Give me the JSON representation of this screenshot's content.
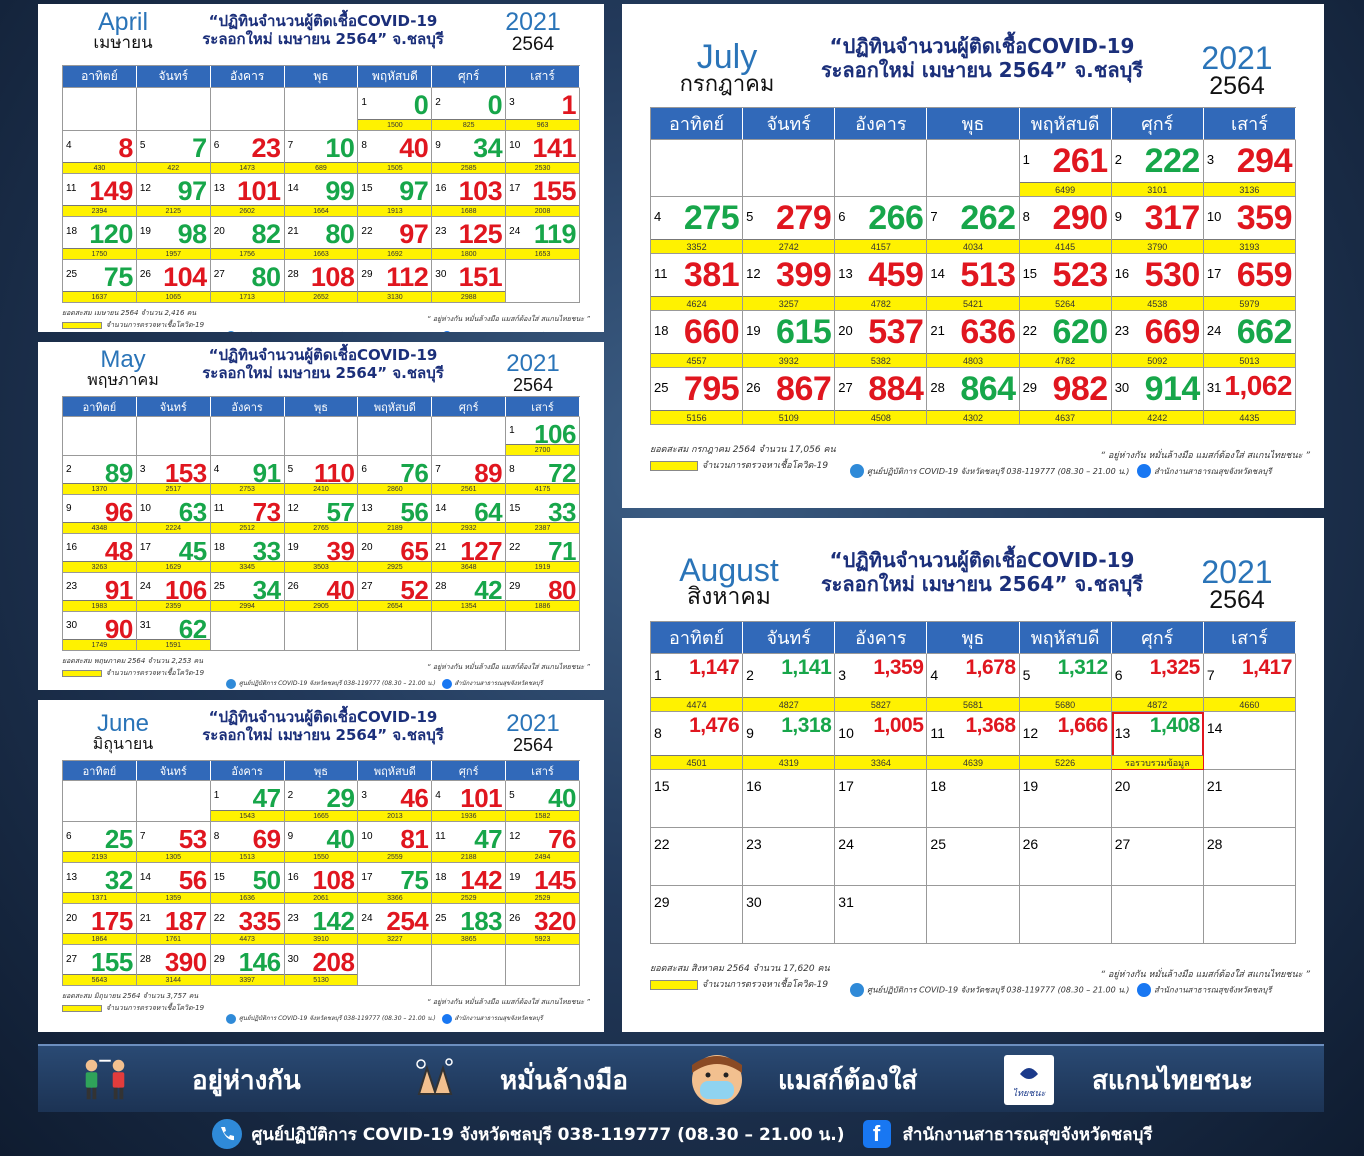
{
  "title_line1": "“ปฏิทินจำนวนผู้ติดเชื้อCOVID-19",
  "title_line2": "ระลอกใหม่ เมษายน 2564” จ.ชลบุรี",
  "year_en": "2021",
  "year_th": "2564",
  "weekdays": [
    "อาทิตย์",
    "จันทร์",
    "อังคาร",
    "พุธ",
    "พฤหัสบดี",
    "ศุกร์",
    "เสาร์"
  ],
  "footer": {
    "slogan": "“ อยู่ห่างกัน หมั่นล้างมือ แมสก์ต้องใส่ สแกนไทยชนะ ”",
    "legend": "จำนวนการตรวจหาเชื้อโควิด-19",
    "center": "ศูนย์ปฏิบัติการ COVID-19 จังหวัดชลบุรี 038-119777 (08.30 – 21.00 น.)",
    "office": "สำนักงานสาธารณสุขจังหวัดชลบุรี"
  },
  "months": {
    "april": {
      "en": "April",
      "th": "เมษายน",
      "total": "ยอดสะสม เมษายน 2564 จำนวน 2,416 คน",
      "offset": 4,
      "days": [
        [
          "0",
          "1500",
          "g"
        ],
        [
          "0",
          "825",
          "g"
        ],
        [
          "1",
          "963",
          "r"
        ],
        [
          "8",
          "430",
          "r"
        ],
        [
          "7",
          "422",
          "g"
        ],
        [
          "23",
          "1473",
          "r"
        ],
        [
          "10",
          "689",
          "g"
        ],
        [
          "40",
          "1505",
          "r"
        ],
        [
          "34",
          "2585",
          "g"
        ],
        [
          "141",
          "2530",
          "r"
        ],
        [
          "149",
          "2394",
          "r"
        ],
        [
          "97",
          "2125",
          "g"
        ],
        [
          "101",
          "2602",
          "r"
        ],
        [
          "99",
          "1664",
          "g"
        ],
        [
          "97",
          "1913",
          "g"
        ],
        [
          "103",
          "1688",
          "r"
        ],
        [
          "155",
          "2008",
          "r"
        ],
        [
          "120",
          "1750",
          "g"
        ],
        [
          "98",
          "1957",
          "g"
        ],
        [
          "82",
          "1756",
          "g"
        ],
        [
          "80",
          "1663",
          "g"
        ],
        [
          "97",
          "1692",
          "r"
        ],
        [
          "125",
          "1800",
          "r"
        ],
        [
          "119",
          "1653",
          "g"
        ],
        [
          "75",
          "1637",
          "g"
        ],
        [
          "104",
          "1065",
          "r"
        ],
        [
          "80",
          "1713",
          "g"
        ],
        [
          "108",
          "2652",
          "r"
        ],
        [
          "112",
          "3130",
          "r"
        ],
        [
          "151",
          "2988",
          "r"
        ]
      ]
    },
    "may": {
      "en": "May",
      "th": "พฤษภาคม",
      "total": "ยอดสะสม พฤษภาคม 2564 จำนวน 2,253 คน",
      "offset": 6,
      "days": [
        [
          "106",
          "2700",
          "g"
        ],
        [
          "89",
          "1370",
          "g"
        ],
        [
          "153",
          "2517",
          "r"
        ],
        [
          "91",
          "2753",
          "g"
        ],
        [
          "110",
          "2410",
          "r"
        ],
        [
          "76",
          "2860",
          "g"
        ],
        [
          "89",
          "2561",
          "r"
        ],
        [
          "72",
          "4175",
          "g"
        ],
        [
          "96",
          "4348",
          "r"
        ],
        [
          "63",
          "2224",
          "g"
        ],
        [
          "73",
          "2512",
          "r"
        ],
        [
          "57",
          "2765",
          "g"
        ],
        [
          "56",
          "2189",
          "g"
        ],
        [
          "64",
          "2932",
          "g"
        ],
        [
          "33",
          "2387",
          "g"
        ],
        [
          "48",
          "3263",
          "r"
        ],
        [
          "45",
          "1629",
          "g"
        ],
        [
          "33",
          "3345",
          "g"
        ],
        [
          "39",
          "3503",
          "r"
        ],
        [
          "65",
          "2925",
          "r"
        ],
        [
          "127",
          "3648",
          "r"
        ],
        [
          "71",
          "1919",
          "g"
        ],
        [
          "91",
          "1983",
          "r"
        ],
        [
          "106",
          "2359",
          "r"
        ],
        [
          "34",
          "2994",
          "g"
        ],
        [
          "40",
          "2905",
          "r"
        ],
        [
          "52",
          "2654",
          "r"
        ],
        [
          "42",
          "1354",
          "g"
        ],
        [
          "80",
          "1886",
          "r"
        ],
        [
          "90",
          "1749",
          "r"
        ],
        [
          "62",
          "1591",
          "g"
        ]
      ]
    },
    "june": {
      "en": "June",
      "th": "มิถุนายน",
      "total": "ยอดสะสม มิถุนายน 2564 จำนวน 3,757 คน",
      "offset": 2,
      "days": [
        [
          "47",
          "1543",
          "g"
        ],
        [
          "29",
          "1665",
          "g"
        ],
        [
          "46",
          "2013",
          "r"
        ],
        [
          "101",
          "1936",
          "r"
        ],
        [
          "40",
          "1582",
          "g"
        ],
        [
          "25",
          "2193",
          "g"
        ],
        [
          "53",
          "1305",
          "r"
        ],
        [
          "69",
          "1513",
          "r"
        ],
        [
          "40",
          "1550",
          "g"
        ],
        [
          "81",
          "2559",
          "r"
        ],
        [
          "47",
          "2188",
          "g"
        ],
        [
          "76",
          "2494",
          "r"
        ],
        [
          "32",
          "1371",
          "g"
        ],
        [
          "56",
          "1359",
          "r"
        ],
        [
          "50",
          "1636",
          "g"
        ],
        [
          "108",
          "2061",
          "r"
        ],
        [
          "75",
          "3366",
          "g"
        ],
        [
          "142",
          "2529",
          "r"
        ],
        [
          "145",
          "2529",
          "r"
        ],
        [
          "175",
          "1864",
          "r"
        ],
        [
          "187",
          "1761",
          "r"
        ],
        [
          "335",
          "4473",
          "r"
        ],
        [
          "142",
          "3910",
          "g"
        ],
        [
          "254",
          "3227",
          "r"
        ],
        [
          "183",
          "3865",
          "g"
        ],
        [
          "320",
          "5923",
          "r"
        ],
        [
          "155",
          "5643",
          "g"
        ],
        [
          "390",
          "3144",
          "r"
        ],
        [
          "146",
          "3397",
          "g"
        ],
        [
          "208",
          "5130",
          "r"
        ]
      ]
    },
    "july": {
      "en": "July",
      "th": "กรกฎาคม",
      "total": "ยอดสะสม กรกฎาคม 2564 จำนวน 17,056 คน",
      "offset": 4,
      "days": [
        [
          "261",
          "6499",
          "r"
        ],
        [
          "222",
          "3101",
          "g"
        ],
        [
          "294",
          "3136",
          "r"
        ],
        [
          "275",
          "3352",
          "g"
        ],
        [
          "279",
          "2742",
          "r"
        ],
        [
          "266",
          "4157",
          "g"
        ],
        [
          "262",
          "4034",
          "g"
        ],
        [
          "290",
          "4145",
          "r"
        ],
        [
          "317",
          "3790",
          "r"
        ],
        [
          "359",
          "3193",
          "r"
        ],
        [
          "381",
          "4624",
          "r"
        ],
        [
          "399",
          "3257",
          "r"
        ],
        [
          "459",
          "4782",
          "r"
        ],
        [
          "513",
          "5421",
          "r"
        ],
        [
          "523",
          "5264",
          "r"
        ],
        [
          "530",
          "4538",
          "r"
        ],
        [
          "659",
          "5979",
          "r"
        ],
        [
          "660",
          "4557",
          "r"
        ],
        [
          "615",
          "3932",
          "g"
        ],
        [
          "537",
          "5382",
          "r"
        ],
        [
          "636",
          "4803",
          "r"
        ],
        [
          "620",
          "4782",
          "g"
        ],
        [
          "669",
          "5092",
          "r"
        ],
        [
          "662",
          "5013",
          "g"
        ],
        [
          "795",
          "5156",
          "r"
        ],
        [
          "867",
          "5109",
          "r"
        ],
        [
          "884",
          "4508",
          "r"
        ],
        [
          "864",
          "4302",
          "g"
        ],
        [
          "982",
          "4637",
          "r"
        ],
        [
          "914",
          "4242",
          "g"
        ],
        [
          "1,062",
          "4435",
          "r"
        ]
      ]
    },
    "august": {
      "en": "August",
      "th": "สิงหาคม",
      "total": "ยอดสะสม สิงหาคม 2564 จำนวน 17,620 คน",
      "offset": 0,
      "days": [
        [
          "1,147",
          "4474",
          "r"
        ],
        [
          "1,141",
          "4827",
          "g"
        ],
        [
          "1,359",
          "5827",
          "r"
        ],
        [
          "1,678",
          "5681",
          "r"
        ],
        [
          "1,312",
          "5680",
          "g"
        ],
        [
          "1,325",
          "4872",
          "r"
        ],
        [
          "1,417",
          "4660",
          "r"
        ],
        [
          "1,476",
          "4501",
          "r"
        ],
        [
          "1,318",
          "4319",
          "g"
        ],
        [
          "1,005",
          "3364",
          "r"
        ],
        [
          "1,368",
          "4639",
          "r"
        ],
        [
          "1,666",
          "5226",
          "r"
        ],
        [
          "1,408",
          "รอรวบรวมข้อมูล",
          "g"
        ],
        [
          "",
          "",
          ""
        ],
        [
          "",
          "",
          ""
        ],
        [
          "",
          "",
          ""
        ],
        [
          "",
          "",
          ""
        ],
        [
          "",
          "",
          ""
        ],
        [
          "",
          "",
          ""
        ],
        [
          "",
          "",
          ""
        ],
        [
          "",
          "",
          ""
        ],
        [
          "",
          "",
          ""
        ],
        [
          "",
          "",
          ""
        ],
        [
          "",
          "",
          ""
        ],
        [
          "",
          "",
          ""
        ],
        [
          "",
          "",
          ""
        ],
        [
          "",
          "",
          ""
        ],
        [
          "",
          "",
          ""
        ],
        [
          "",
          "",
          ""
        ],
        [
          "",
          "",
          ""
        ],
        [
          "",
          "",
          ""
        ]
      ]
    }
  },
  "bottom": {
    "items": [
      {
        "label": "อยู่ห่างกัน",
        "icon": "social-distance-icon"
      },
      {
        "label": "หมั่นล้างมือ",
        "icon": "handwash-icon"
      },
      {
        "label": "แมสก์ต้องใส่",
        "icon": "face-mask-icon"
      },
      {
        "label": "สแกนไทยชนะ",
        "icon": "thaichana-icon",
        "badge": "ไทยชนะ"
      }
    ],
    "contact": "ศูนย์ปฏิบัติการ COVID-19 จังหวัดชลบุรี 038-119777 (08.30 – 21.00 น.)",
    "office": "สำนักงานสาธารณสุขจังหวัดชลบุรี"
  }
}
